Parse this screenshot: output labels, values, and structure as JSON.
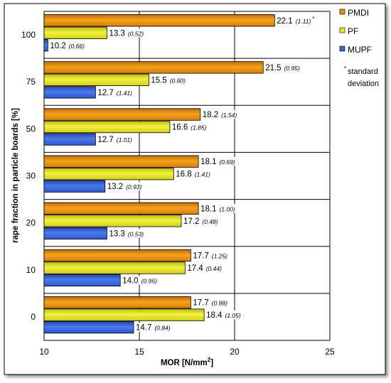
{
  "chart_data": {
    "type": "bar",
    "orientation": "horizontal",
    "xlabel": "MOR [N/mm²]",
    "xlabel_main": "MOR [N/mm",
    "xlabel_sup": "2",
    "xlabel_end": "]",
    "ylabel": "rape fraction in particle boards [%]",
    "xlim": [
      10,
      25
    ],
    "xticks": [
      10,
      15,
      20,
      25
    ],
    "categories": [
      "100",
      "75",
      "50",
      "30",
      "20",
      "10",
      "0"
    ],
    "series": [
      {
        "name": "PMDI",
        "color": "#e8900e",
        "values": [
          22.1,
          21.5,
          18.2,
          18.1,
          18.1,
          17.7,
          17.7
        ],
        "labels": [
          "22.1",
          "21.5",
          "18.2",
          "18.1",
          "18.1",
          "17.7",
          "17.7"
        ],
        "sd": [
          "(1.11)",
          "(0.95)",
          "(1.54)",
          "(0.69)",
          "(1.00)",
          "(1.25)",
          "(0.88)"
        ]
      },
      {
        "name": "PF",
        "color": "#e6e62a",
        "values": [
          13.3,
          15.5,
          16.6,
          16.8,
          17.2,
          17.4,
          18.4
        ],
        "labels": [
          "13.3",
          "15.5",
          "16.6",
          "16.8",
          "17.2",
          "17.4",
          "18.4"
        ],
        "sd": [
          "(0,52)",
          "(0.60)",
          "(1.85)",
          "(1.41)",
          "(0.48)",
          "(0.44)",
          "(1.05)"
        ]
      },
      {
        "name": "MUPF",
        "color": "#3a66d8",
        "values": [
          10.2,
          12.7,
          12.7,
          13.2,
          13.3,
          14.0,
          14.7
        ],
        "labels": [
          "10.2",
          "12.7",
          "12.7",
          "13.2",
          "13.3",
          "14.0",
          "14.7"
        ],
        "sd": [
          "(0,66)",
          "(1.41)",
          "(1.01)",
          "(0.93)",
          "(0.53)",
          "(0.95)",
          "(0.84)"
        ]
      }
    ],
    "annotation_marker": "*",
    "legend": {
      "position": "right",
      "note_marker": "*",
      "note_line1": "standard",
      "note_line2": "deviation"
    },
    "grid": {
      "x": true,
      "y": false
    }
  }
}
